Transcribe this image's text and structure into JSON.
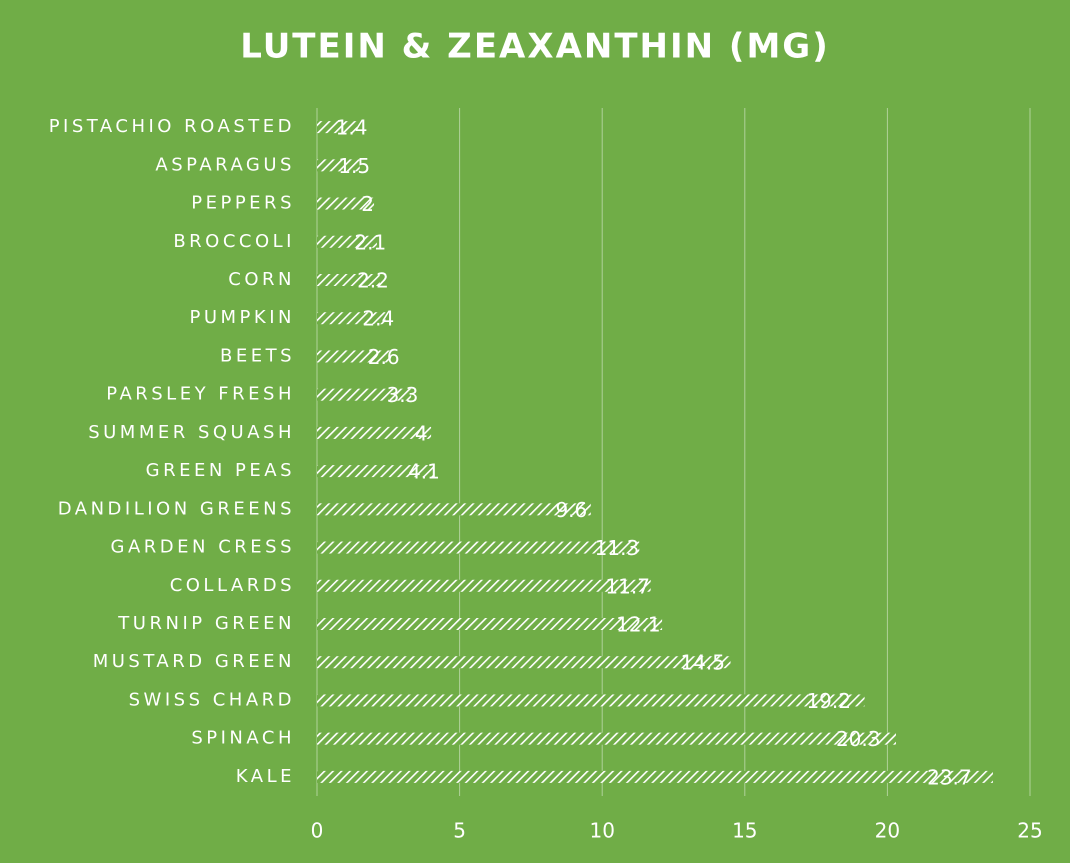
{
  "chart_data": {
    "type": "barh",
    "title": "LUTEIN & ZEAXANTHIN (MG)",
    "categories": [
      "PISTACHIO ROASTED",
      "ASPARAGUS",
      "PEPPERS",
      "BROCCOLI",
      "CORN",
      "PUMPKIN",
      "BEETS",
      "PARSLEY FRESH",
      "SUMMER SQUASH",
      "GREEN PEAS",
      "DANDILION GREENS",
      "GARDEN CRESS",
      "COLLARDS",
      "TURNIP GREEN",
      "MUSTARD GREEN",
      "SWISS CHARD",
      "SPINACH",
      "KALE"
    ],
    "values": [
      1.4,
      1.5,
      2,
      2.1,
      2.2,
      2.4,
      2.6,
      3.3,
      4,
      4.1,
      9.6,
      11.3,
      11.7,
      12.1,
      14.5,
      19.2,
      20.3,
      23.7
    ],
    "color": "#ffffff",
    "xlim": [
      0,
      25
    ],
    "xticks": [
      0,
      5,
      10,
      15,
      20,
      25
    ],
    "grid": true
  }
}
